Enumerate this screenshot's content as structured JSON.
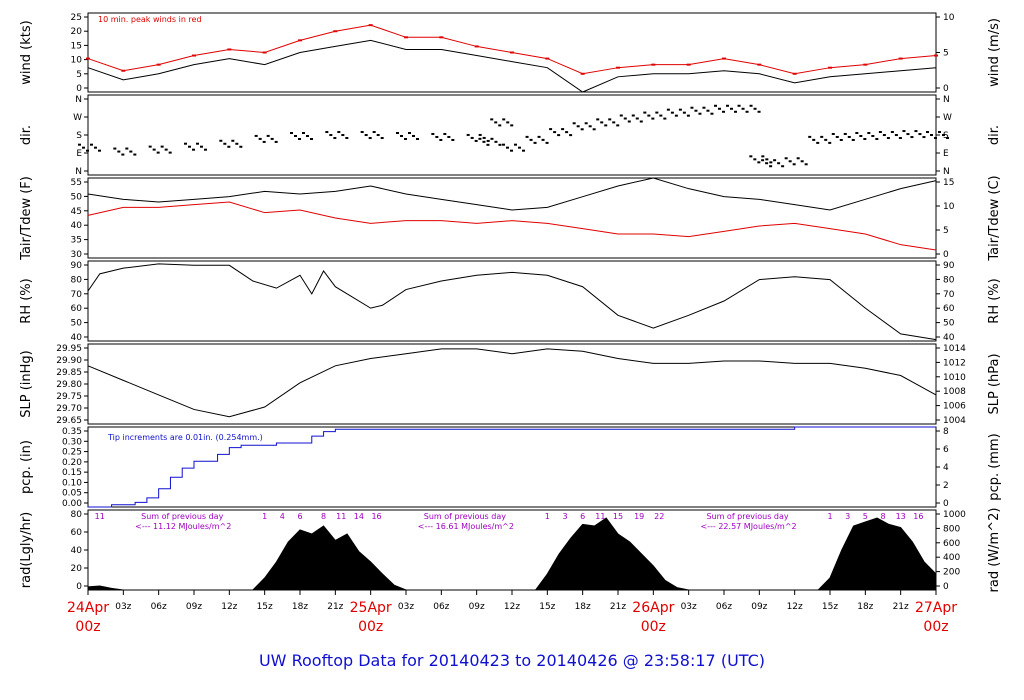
{
  "footer": "UW Rooftop Data for 20140423  to  20140426 @ 23:58:17  (UTC)",
  "colors": {
    "frame": "#000000",
    "wind_peak": "#e00000",
    "tdew": "#e00000",
    "pcp": "#1010d0",
    "purple": "#a000c0",
    "date": "#e00000",
    "footer": "#1010d0"
  },
  "time_axis": {
    "hour_ticks": [
      "03z",
      "06z",
      "09z",
      "12z",
      "15z",
      "18z",
      "21z",
      "03z",
      "06z",
      "09z",
      "12z",
      "15z",
      "18z",
      "21z",
      "03z",
      "06z",
      "09z",
      "12z",
      "15z",
      "18z",
      "21z"
    ],
    "day_labels": [
      {
        "date": "24Apr",
        "time": "00z"
      },
      {
        "date": "25Apr",
        "time": "00z"
      },
      {
        "date": "26Apr",
        "time": "00z"
      },
      {
        "date": "27Apr",
        "time": "00z"
      }
    ]
  },
  "chart_data": [
    {
      "type": "line",
      "id": "wind",
      "ylabel_left": "wind (kts)",
      "ylabel_right": "wind (m/s)",
      "note": "10 min. peak winds in red",
      "ylim": [
        0,
        26
      ],
      "ticks_left": [
        "0",
        "5",
        "10",
        "15",
        "20",
        "25"
      ],
      "ticks_right": [
        "0",
        "5",
        "10"
      ],
      "series": [
        {
          "name": "",
          "color": "#000000",
          "x_hours": [
            0,
            3,
            6,
            9,
            12,
            15,
            18,
            21,
            24,
            27,
            30,
            33,
            36,
            39,
            42,
            45,
            48,
            51,
            54,
            57,
            60,
            63,
            66,
            69,
            72
          ],
          "values": [
            8,
            4,
            6,
            9,
            11,
            9,
            13,
            15,
            17,
            14,
            14,
            12,
            10,
            8,
            0,
            5,
            6,
            6,
            7,
            6,
            3,
            5,
            6,
            7,
            8
          ]
        },
        {
          "name": "",
          "color": "#e00000",
          "x_hours": [
            0,
            3,
            6,
            9,
            12,
            15,
            18,
            21,
            24,
            27,
            30,
            33,
            36,
            39,
            42,
            45,
            48,
            51,
            54,
            57,
            60,
            63,
            66,
            69,
            72
          ],
          "values": [
            11,
            7,
            9,
            12,
            14,
            13,
            17,
            20,
            22,
            18,
            18,
            15,
            13,
            11,
            6,
            8,
            9,
            9,
            11,
            9,
            6,
            8,
            9,
            11,
            12
          ]
        }
      ]
    },
    {
      "type": "scatter",
      "id": "dir",
      "ylabel_left": "dir.",
      "ylabel_right": "dir.",
      "ticks_left": [
        "N",
        "E",
        "S",
        "W",
        "N"
      ],
      "ticks_right": [
        "N",
        "E",
        "S",
        "W",
        "N"
      ],
      "ylim": [
        0,
        360
      ],
      "series": [
        {
          "name": "",
          "color": "#000000",
          "x_hours": [
            0,
            3,
            6,
            9,
            12,
            15,
            18,
            21,
            24,
            27,
            30,
            33,
            34,
            35,
            36,
            38,
            40,
            42,
            44,
            46,
            48,
            50,
            52,
            54,
            56,
            57,
            58,
            60,
            62,
            64,
            66,
            68,
            70,
            72
          ],
          "values": [
            120,
            100,
            110,
            125,
            140,
            165,
            180,
            185,
            185,
            180,
            175,
            170,
            150,
            250,
            120,
            160,
            200,
            230,
            250,
            270,
            285,
            300,
            310,
            320,
            320,
            60,
            40,
            50,
            160,
            175,
            180,
            185,
            190,
            185
          ]
        }
      ]
    },
    {
      "type": "line",
      "id": "temp",
      "ylabel_left": "Tair/Tdew (F)",
      "ylabel_right": "Tair/Tdew (C)",
      "ylim": [
        28,
        58
      ],
      "ticks_left": [
        "30",
        "35",
        "40",
        "45",
        "50",
        "55"
      ],
      "ticks_right": [
        "0",
        "5",
        "10",
        "15"
      ],
      "series": [
        {
          "name": "",
          "color": "#000000",
          "x_hours": [
            0,
            3,
            6,
            9,
            12,
            15,
            18,
            21,
            24,
            27,
            30,
            33,
            36,
            39,
            42,
            45,
            48,
            51,
            54,
            57,
            60,
            63,
            66,
            69,
            72
          ],
          "values": [
            52,
            50,
            49,
            50,
            51,
            53,
            52,
            53,
            55,
            52,
            50,
            48,
            46,
            47,
            51,
            55,
            58,
            54,
            51,
            50,
            48,
            46,
            50,
            54,
            57
          ]
        },
        {
          "name": "",
          "color": "#e00000",
          "x_hours": [
            0,
            3,
            6,
            9,
            12,
            15,
            18,
            21,
            24,
            27,
            30,
            33,
            36,
            39,
            42,
            45,
            48,
            51,
            54,
            57,
            60,
            63,
            66,
            69,
            72
          ],
          "values": [
            44,
            47,
            47,
            48,
            49,
            45,
            46,
            43,
            41,
            42,
            42,
            41,
            42,
            41,
            39,
            37,
            37,
            36,
            38,
            40,
            41,
            39,
            37,
            33,
            31
          ]
        }
      ]
    },
    {
      "type": "line",
      "id": "rh",
      "ylabel_left": "RH (%)",
      "ylabel_right": "RH (%)",
      "ylim": [
        37,
        93
      ],
      "ticks_left": [
        "40",
        "50",
        "60",
        "70",
        "80",
        "90"
      ],
      "ticks_right": [
        "40",
        "50",
        "60",
        "70",
        "80",
        "90"
      ],
      "series": [
        {
          "name": "",
          "color": "#000000",
          "x_hours": [
            0,
            1,
            3,
            6,
            9,
            12,
            14,
            16,
            18,
            19,
            20,
            21,
            24,
            25,
            27,
            30,
            33,
            36,
            39,
            42,
            45,
            48,
            51,
            54,
            57,
            60,
            63,
            66,
            69,
            72
          ],
          "values": [
            72,
            84,
            88,
            91,
            90,
            90,
            79,
            74,
            83,
            70,
            86,
            75,
            60,
            62,
            73,
            79,
            83,
            85,
            83,
            75,
            55,
            46,
            55,
            65,
            80,
            82,
            80,
            60,
            42,
            38
          ]
        }
      ]
    },
    {
      "type": "line",
      "id": "slp",
      "ylabel_left": "SLP (inHg)",
      "ylabel_right": "SLP (hPa)",
      "ylim": [
        29.65,
        29.98
      ],
      "ticks_left": [
        "29.65",
        "29.70",
        "29.75",
        "29.80",
        "29.85",
        "29.90",
        "29.95"
      ],
      "ticks_right": [
        "1004",
        "1006",
        "1008",
        "1010",
        "1012",
        "1014"
      ],
      "series": [
        {
          "name": "",
          "color": "#000000",
          "x_hours": [
            0,
            3,
            6,
            9,
            12,
            15,
            18,
            21,
            24,
            27,
            30,
            33,
            36,
            39,
            42,
            45,
            48,
            51,
            54,
            57,
            60,
            63,
            66,
            69,
            72
          ],
          "values": [
            29.89,
            29.83,
            29.77,
            29.71,
            29.68,
            29.72,
            29.82,
            29.89,
            29.92,
            29.94,
            29.96,
            29.96,
            29.94,
            29.96,
            29.95,
            29.92,
            29.9,
            29.9,
            29.91,
            29.91,
            29.9,
            29.9,
            29.88,
            29.85,
            29.77
          ]
        }
      ]
    },
    {
      "type": "line",
      "id": "pcp",
      "ylabel_left": "pcp. (in)",
      "ylabel_right": "pcp. (mm)",
      "note": "Tip increments are 0.01in. (0.254mm.)",
      "ylim": [
        0,
        0.35
      ],
      "ticks_left": [
        "0.00",
        "0.05",
        "0.10",
        "0.15",
        "0.20",
        "0.25",
        "0.30",
        "0.35"
      ],
      "ticks_right": [
        "0",
        "2",
        "4",
        "6",
        "8"
      ],
      "series": [
        {
          "name": "",
          "color": "#1010d0",
          "x_hours": [
            0,
            2,
            4,
            5,
            6,
            7,
            8,
            9,
            11,
            12,
            13,
            15,
            16,
            18,
            19,
            20,
            21,
            24,
            40,
            48,
            57,
            60,
            63,
            66,
            69,
            72
          ],
          "values": [
            0.0,
            0.01,
            0.02,
            0.04,
            0.08,
            0.13,
            0.17,
            0.2,
            0.23,
            0.26,
            0.27,
            0.27,
            0.28,
            0.28,
            0.31,
            0.33,
            0.34,
            0.34,
            0.34,
            0.34,
            0.34,
            0.35,
            0.35,
            0.35,
            0.35,
            0.35
          ]
        }
      ]
    },
    {
      "type": "area",
      "id": "rad",
      "ylabel_left": "rad(Lgly/hr)",
      "ylabel_right": "rad (W/m^2)",
      "ylim": [
        0,
        1000
      ],
      "ticks_left": [
        "0",
        "20",
        "40",
        "60",
        "80"
      ],
      "ticks_right": [
        "0",
        "200",
        "400",
        "600",
        "800",
        "1000"
      ],
      "hour_marks": [
        {
          "label": "11",
          "x_hours": 1
        },
        {
          "label": "1",
          "x_hours": 15
        },
        {
          "label": "4",
          "x_hours": 16.5
        },
        {
          "label": "6",
          "x_hours": 18
        },
        {
          "label": "8",
          "x_hours": 20
        },
        {
          "label": "11",
          "x_hours": 21.5
        },
        {
          "label": "14",
          "x_hours": 23
        },
        {
          "label": "16",
          "x_hours": 24.5
        },
        {
          "label": "1",
          "x_hours": 39
        },
        {
          "label": "3",
          "x_hours": 40.5
        },
        {
          "label": "6",
          "x_hours": 42
        },
        {
          "label": "11",
          "x_hours": 43.5
        },
        {
          "label": "15",
          "x_hours": 45
        },
        {
          "label": "19",
          "x_hours": 46.8
        },
        {
          "label": "22",
          "x_hours": 48.5
        },
        {
          "label": "1",
          "x_hours": 63
        },
        {
          "label": "3",
          "x_hours": 64.5
        },
        {
          "label": "5",
          "x_hours": 66
        },
        {
          "label": "8",
          "x_hours": 67.5
        },
        {
          "label": "13",
          "x_hours": 69
        },
        {
          "label": "16",
          "x_hours": 70.5
        }
      ],
      "annotations": [
        {
          "line1": "Sum of previous day",
          "line2": "<--- 11.12 MJoules/m^2",
          "x_hours": 4
        },
        {
          "line1": "Sum of previous day",
          "line2": "<--- 16.61 MJoules/m^2",
          "x_hours": 28
        },
        {
          "line1": "Sum of previous day",
          "line2": "<--- 22.57 MJoules/m^2",
          "x_hours": 52
        }
      ],
      "series": [
        {
          "name": "",
          "color": "#000000",
          "x_hours": [
            0,
            1,
            2,
            3,
            14,
            15,
            16,
            17,
            18,
            19,
            20,
            21,
            22,
            23,
            24,
            25,
            26,
            27,
            38,
            39,
            40,
            41,
            42,
            43,
            44,
            45,
            46,
            47,
            48,
            49,
            50,
            51,
            62,
            63,
            64,
            65,
            66,
            67,
            68,
            69,
            70,
            71,
            72
          ],
          "values": [
            40,
            50,
            20,
            0,
            0,
            150,
            350,
            600,
            750,
            700,
            800,
            620,
            700,
            480,
            350,
            200,
            60,
            0,
            0,
            200,
            450,
            650,
            820,
            800,
            900,
            700,
            600,
            450,
            300,
            120,
            30,
            0,
            0,
            150,
            500,
            800,
            850,
            900,
            820,
            780,
            600,
            350,
            200
          ]
        }
      ]
    }
  ]
}
